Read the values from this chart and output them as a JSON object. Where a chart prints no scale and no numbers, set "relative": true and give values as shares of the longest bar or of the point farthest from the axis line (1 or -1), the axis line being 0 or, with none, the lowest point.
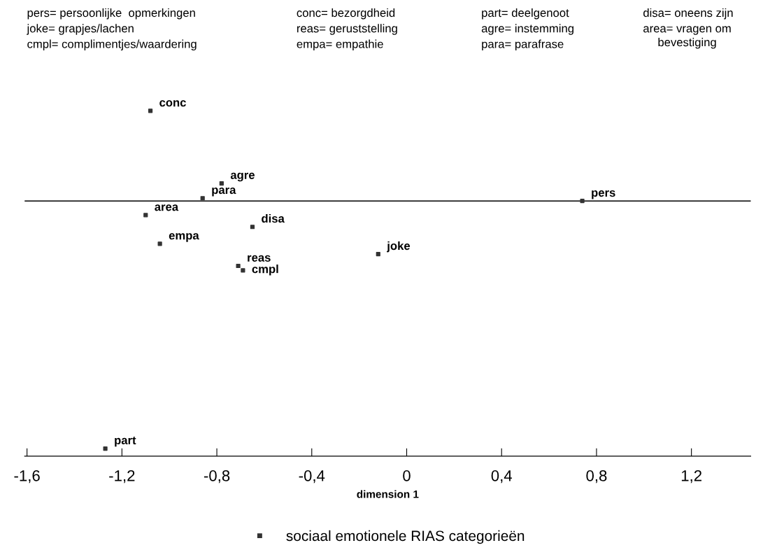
{
  "chart_data": {
    "type": "scatter",
    "xlabel": "dimension 1",
    "relative": true,
    "xlim": [
      -1.61,
      1.45
    ],
    "xticks": [
      {
        "value": -1.6,
        "label": "-1,6"
      },
      {
        "value": -1.2,
        "label": "-1,2"
      },
      {
        "value": -0.8,
        "label": "-0,8"
      },
      {
        "value": -0.4,
        "label": "-0,4"
      },
      0,
      {
        "value": 0.4,
        "label": "0,4"
      },
      {
        "value": 0.8,
        "label": "0,8"
      },
      {
        "value": 1.2,
        "label": "1,2"
      }
    ],
    "series": [
      {
        "name": "sociaal emotionele RIAS categorieën",
        "color": "#333333",
        "x": [
          -1.08,
          -0.78,
          -0.86,
          -1.1,
          -0.65,
          -1.04,
          -0.12,
          -0.71,
          -0.69,
          0.74,
          -1.27
        ],
        "values": [
          1,
          0.79,
          0.747,
          0.698,
          0.664,
          0.615,
          0.585,
          0.551,
          0.538,
          0.739,
          0.022
        ]
      }
    ],
    "marker": "square",
    "grid": false,
    "legend": "bottom",
    "ref_lines": [
      {
        "axis": "y",
        "value": 0.739,
        "color": "#000000"
      }
    ],
    "annotations": [
      "pers= persoonlijke  opmerkingen",
      "joke= grapjes/lachen",
      "cmpl= complimentjes/waardering",
      "conc= bezorgdheid",
      "reas= geruststelling",
      "empa= empathie",
      "part= deelgenoot",
      "agre= instemming",
      "para= parafrase",
      "disa= oneens zijn",
      "area= vragen om\nbevestiging",
      {
        "text": "conc",
        "x": -1.08,
        "y": 1
      },
      {
        "text": "agre",
        "x": -0.78,
        "y": 0.79
      },
      {
        "text": "para",
        "x": -0.86,
        "y": 0.747
      },
      {
        "text": "area",
        "x": -1.1,
        "y": 0.698
      },
      {
        "text": "disa",
        "x": -0.65,
        "y": 0.664
      },
      {
        "text": "empa",
        "x": -1.04,
        "y": 0.615
      },
      {
        "text": "joke",
        "x": -0.12,
        "y": 0.585
      },
      {
        "text": "reas",
        "x": -0.71,
        "y": 0.551
      },
      {
        "text": "cmpl",
        "x": -0.69,
        "y": 0.538
      },
      {
        "text": "pers",
        "x": 0.74,
        "y": 0.739
      },
      {
        "text": "part",
        "x": -1.27,
        "y": 0.022
      }
    ]
  }
}
